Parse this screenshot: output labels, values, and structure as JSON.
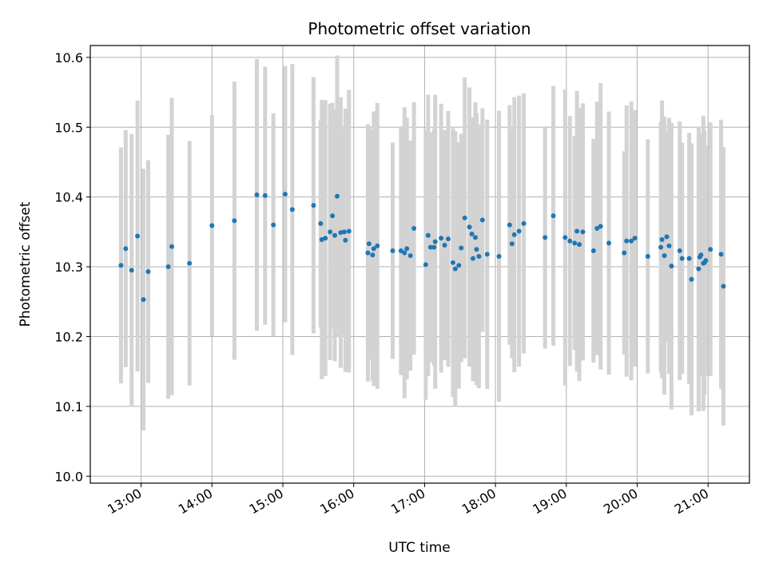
{
  "chart_data": {
    "type": "scatter",
    "title": "Photometric offset variation",
    "xlabel": "UTC time",
    "ylabel": "Photometric offset",
    "x_ticks": [
      "13:00",
      "14:00",
      "15:00",
      "16:00",
      "17:00",
      "18:00",
      "19:00",
      "20:00",
      "21:00"
    ],
    "y_ticks": [
      "10.0",
      "10.1",
      "10.2",
      "10.3",
      "10.4",
      "10.5",
      "10.6"
    ],
    "xlim": [
      "12:17",
      "21:35"
    ],
    "ylim": [
      9.99,
      10.617
    ],
    "grid": true,
    "errorbar_color": "#d3d3d3",
    "point_color": "#1f77b4",
    "series": [
      {
        "x": [
          "12:43",
          "12:47",
          "12:52",
          "12:57",
          "13:02",
          "13:06",
          "13:23",
          "13:26",
          "13:41",
          "14:00",
          "14:19",
          "14:38",
          "14:45",
          "14:52",
          "15:02",
          "15:08",
          "15:26",
          "15:32",
          "15:33",
          "15:36",
          "15:40",
          "15:42",
          "15:44",
          "15:46",
          "15:49",
          "15:52",
          "15:53",
          "15:56",
          "16:12",
          "16:13",
          "16:16",
          "16:17",
          "16:20",
          "16:33",
          "16:40",
          "16:43",
          "16:45",
          "16:48",
          "16:51",
          "17:01",
          "17:03",
          "17:05",
          "17:08",
          "17:09",
          "17:14",
          "17:17",
          "17:20",
          "17:24",
          "17:26",
          "17:29",
          "17:31",
          "17:34",
          "17:38",
          "17:40",
          "17:41",
          "17:43",
          "17:44",
          "17:46",
          "17:49",
          "17:53",
          "18:03",
          "18:12",
          "18:14",
          "18:16",
          "18:20",
          "18:24",
          "18:42",
          "18:49",
          "18:59",
          "19:03",
          "19:07",
          "19:09",
          "19:11",
          "19:14",
          "19:23",
          "19:26",
          "19:29",
          "19:36",
          "19:49",
          "19:51",
          "19:55",
          "19:58",
          "20:09",
          "20:20",
          "20:21",
          "20:23",
          "20:25",
          "20:27",
          "20:29",
          "20:36",
          "20:38",
          "20:44",
          "20:46",
          "20:52",
          "20:53",
          "20:54",
          "20:56",
          "20:57",
          "20:58",
          "21:02",
          "21:11",
          "21:13"
        ],
        "y": [
          10.302,
          10.326,
          10.295,
          10.344,
          10.253,
          10.293,
          10.3,
          10.329,
          10.305,
          10.359,
          10.366,
          10.403,
          10.402,
          10.36,
          10.404,
          10.382,
          10.388,
          10.362,
          10.339,
          10.341,
          10.35,
          10.373,
          10.345,
          10.401,
          10.349,
          10.35,
          10.338,
          10.351,
          10.32,
          10.333,
          10.317,
          10.326,
          10.33,
          10.323,
          10.323,
          10.32,
          10.326,
          10.316,
          10.355,
          10.303,
          10.345,
          10.328,
          10.328,
          10.336,
          10.341,
          10.331,
          10.34,
          10.306,
          10.297,
          10.302,
          10.327,
          10.37,
          10.357,
          10.347,
          10.312,
          10.342,
          10.325,
          10.315,
          10.367,
          10.318,
          10.315,
          10.36,
          10.333,
          10.346,
          10.351,
          10.362,
          10.342,
          10.373,
          10.342,
          10.337,
          10.334,
          10.351,
          10.332,
          10.35,
          10.323,
          10.355,
          10.358,
          10.334,
          10.32,
          10.337,
          10.337,
          10.341,
          10.315,
          10.328,
          10.339,
          10.316,
          10.343,
          10.33,
          10.301,
          10.323,
          10.312,
          10.312,
          10.282,
          10.297,
          10.314,
          10.317,
          10.305,
          10.306,
          10.309,
          10.325,
          10.318,
          10.272
        ]
      }
    ]
  }
}
